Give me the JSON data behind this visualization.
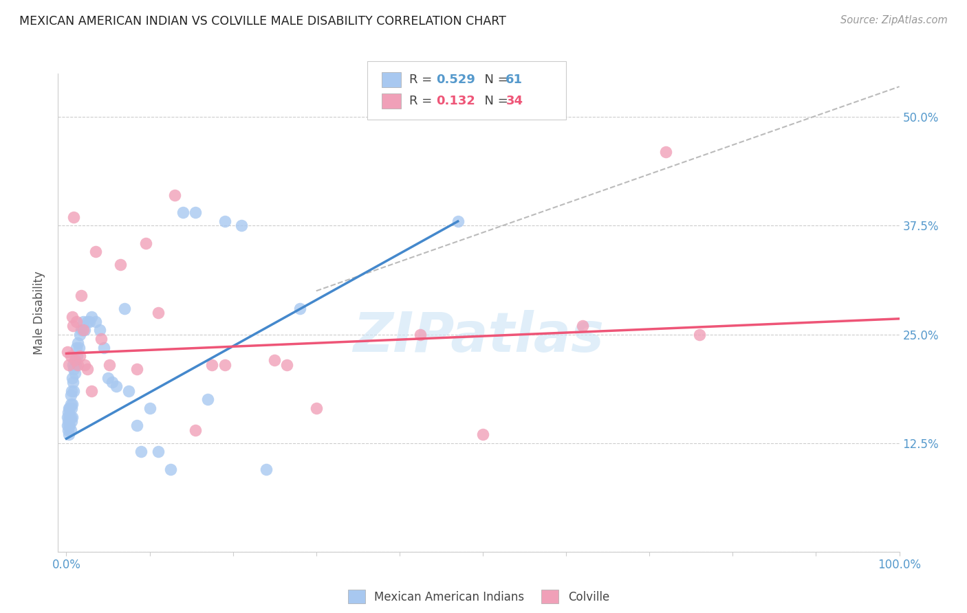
{
  "title": "MEXICAN AMERICAN INDIAN VS COLVILLE MALE DISABILITY CORRELATION CHART",
  "source": "Source: ZipAtlas.com",
  "ylabel_label": "Male Disability",
  "y_ticks": [
    0.0,
    0.125,
    0.25,
    0.375,
    0.5
  ],
  "y_tick_labels": [
    "",
    "12.5%",
    "25.0%",
    "37.5%",
    "50.0%"
  ],
  "xlim": [
    -0.01,
    1.0
  ],
  "ylim": [
    0.0,
    0.55
  ],
  "blue_color": "#A8C8F0",
  "pink_color": "#F0A0B8",
  "blue_line_color": "#4488CC",
  "pink_line_color": "#EE5577",
  "dashed_line_color": "#BBBBBB",
  "legend_blue_R": "0.529",
  "legend_blue_N": "61",
  "legend_pink_R": "0.132",
  "legend_pink_N": "34",
  "watermark": "ZIPatlas",
  "blue_scatter_x": [
    0.001,
    0.001,
    0.002,
    0.002,
    0.002,
    0.003,
    0.003,
    0.003,
    0.003,
    0.004,
    0.004,
    0.004,
    0.005,
    0.005,
    0.005,
    0.005,
    0.006,
    0.006,
    0.006,
    0.007,
    0.007,
    0.007,
    0.008,
    0.008,
    0.009,
    0.009,
    0.01,
    0.01,
    0.011,
    0.012,
    0.013,
    0.014,
    0.015,
    0.016,
    0.018,
    0.02,
    0.022,
    0.025,
    0.028,
    0.03,
    0.035,
    0.04,
    0.045,
    0.05,
    0.055,
    0.06,
    0.07,
    0.075,
    0.085,
    0.09,
    0.1,
    0.11,
    0.125,
    0.14,
    0.155,
    0.17,
    0.19,
    0.21,
    0.24,
    0.28,
    0.47
  ],
  "blue_scatter_y": [
    0.145,
    0.155,
    0.14,
    0.15,
    0.16,
    0.135,
    0.145,
    0.155,
    0.165,
    0.145,
    0.155,
    0.165,
    0.14,
    0.155,
    0.17,
    0.18,
    0.15,
    0.165,
    0.185,
    0.155,
    0.17,
    0.2,
    0.195,
    0.215,
    0.185,
    0.21,
    0.205,
    0.22,
    0.215,
    0.235,
    0.225,
    0.24,
    0.235,
    0.25,
    0.255,
    0.265,
    0.255,
    0.265,
    0.265,
    0.27,
    0.265,
    0.255,
    0.235,
    0.2,
    0.195,
    0.19,
    0.28,
    0.185,
    0.145,
    0.115,
    0.165,
    0.115,
    0.095,
    0.39,
    0.39,
    0.175,
    0.38,
    0.375,
    0.095,
    0.28,
    0.38
  ],
  "pink_scatter_x": [
    0.001,
    0.003,
    0.005,
    0.007,
    0.008,
    0.009,
    0.01,
    0.012,
    0.014,
    0.016,
    0.018,
    0.02,
    0.022,
    0.025,
    0.03,
    0.035,
    0.042,
    0.052,
    0.065,
    0.085,
    0.095,
    0.11,
    0.13,
    0.155,
    0.175,
    0.19,
    0.25,
    0.265,
    0.3,
    0.425,
    0.5,
    0.62,
    0.72,
    0.76
  ],
  "pink_scatter_y": [
    0.23,
    0.215,
    0.225,
    0.27,
    0.26,
    0.385,
    0.22,
    0.265,
    0.215,
    0.225,
    0.295,
    0.255,
    0.215,
    0.21,
    0.185,
    0.345,
    0.245,
    0.215,
    0.33,
    0.21,
    0.355,
    0.275,
    0.41,
    0.14,
    0.215,
    0.215,
    0.22,
    0.215,
    0.165,
    0.25,
    0.135,
    0.26,
    0.46,
    0.25
  ],
  "blue_trendline_x": [
    0.0,
    0.47
  ],
  "blue_trendline_y": [
    0.13,
    0.38
  ],
  "pink_trendline_x": [
    0.0,
    1.0
  ],
  "pink_trendline_y": [
    0.228,
    0.268
  ],
  "dashed_line_x": [
    0.3,
    1.0
  ],
  "dashed_line_y": [
    0.3,
    0.535
  ]
}
